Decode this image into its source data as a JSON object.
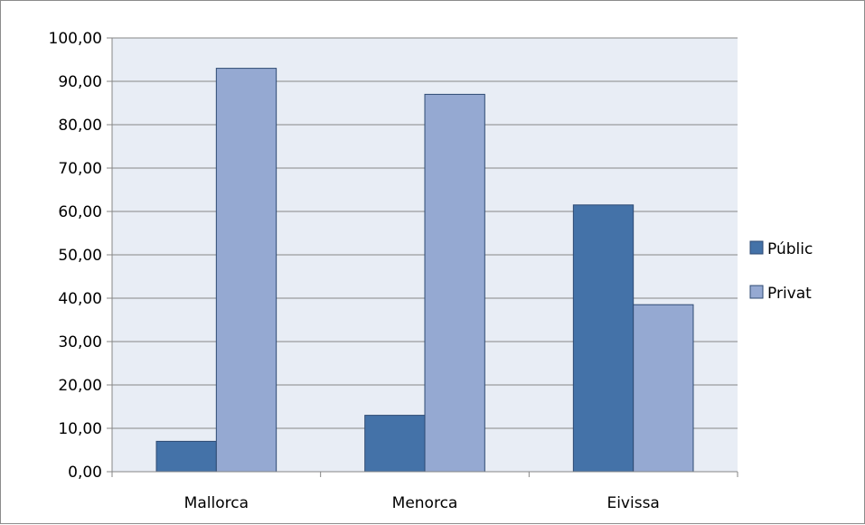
{
  "chart_data": {
    "type": "bar",
    "categories": [
      "Mallorca",
      "Menorca",
      "Eivissa"
    ],
    "series": [
      {
        "name": "Públic",
        "values": [
          7.0,
          13.0,
          61.5
        ],
        "color": "#4472a8"
      },
      {
        "name": "Privat",
        "values": [
          93.0,
          87.0,
          38.5
        ],
        "color": "#95a9d2"
      }
    ],
    "ylim": [
      0,
      100
    ],
    "yticks": [
      "0,00",
      "10,00",
      "20,00",
      "30,00",
      "40,00",
      "50,00",
      "60,00",
      "70,00",
      "80,00",
      "90,00",
      "100,00"
    ],
    "title": "",
    "xlabel": "",
    "ylabel": "",
    "grid": true,
    "legend_position": "right",
    "plot_background": "#e8edf5"
  }
}
